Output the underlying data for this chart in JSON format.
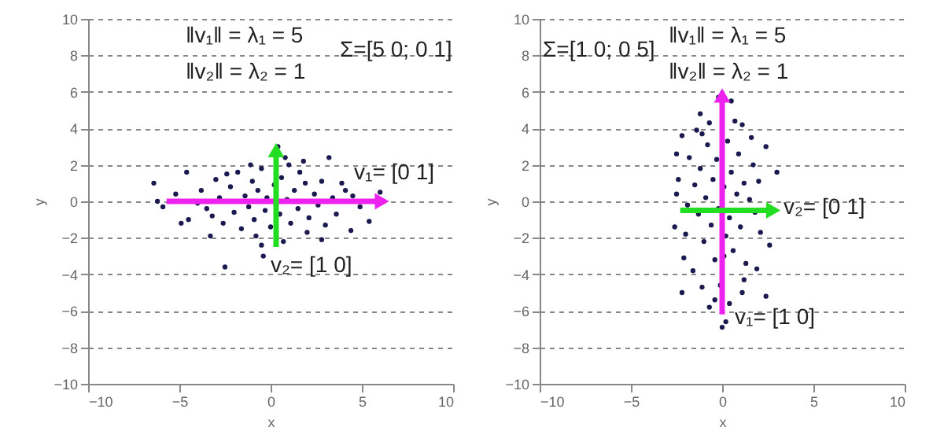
{
  "chart_data": [
    {
      "type": "scatter",
      "xlabel": "x",
      "ylabel": "y",
      "xlim": [
        -10,
        10
      ],
      "xticks": [
        -10,
        -5,
        0,
        5,
        10
      ],
      "ylim": [
        -10,
        10
      ],
      "yticks": [
        -10,
        -8,
        -6,
        -4,
        -2,
        0,
        2,
        4,
        6,
        8,
        10
      ],
      "grid": "y",
      "series": [
        {
          "marker": "circle",
          "color": "#1a1a50",
          "x": [
            -6.4,
            -6.2,
            -5.9,
            -4.6,
            -4.9,
            -4.5,
            -3.3,
            -2.5,
            -0.4,
            -0.5,
            0.4,
            0.8,
            1.8,
            3.2,
            4.5,
            4.9,
            5.4,
            6.0,
            4.4,
            2.8,
            0.7,
            3.9,
            2.8,
            1.6,
            -3.8,
            -3.5,
            -3.0,
            -2.8,
            -2.6,
            -2.2,
            -2.0,
            -1.8,
            -1.6,
            -1.4,
            -1.2,
            -1.0,
            -0.9,
            -0.7,
            -0.5,
            -0.3,
            -0.2,
            0.0,
            0.2,
            0.5,
            0.6,
            0.9,
            1.1,
            1.3,
            1.5,
            1.9,
            2.1,
            2.4,
            2.6,
            3.0,
            3.4,
            3.6,
            -4.0,
            -3.2,
            -1.1,
            1.0,
            -2.4,
            2.0,
            -0.8,
            0.3,
            4.1,
            -5.2
          ],
          "values": [
            1.0,
            0,
            -0.3,
            1.6,
            -1.2,
            -1.0,
            -1.9,
            -3.6,
            -3.0,
            -2.4,
            3.0,
            2.4,
            2.2,
            2.4,
            0.3,
            -0.3,
            -1.1,
            0.5,
            -1.6,
            -2.1,
            -2.2,
            1.0,
            1.1,
            1.6,
            0.6,
            -0.4,
            1.2,
            0.2,
            -1.2,
            0.8,
            -0.6,
            1.6,
            -1.5,
            0.3,
            -0.3,
            1.1,
            -1.0,
            0.6,
            1.8,
            -0.5,
            0.2,
            -1.4,
            0.9,
            -0.7,
            1.3,
            0.1,
            -1.2,
            0.6,
            -0.4,
            1.0,
            -0.9,
            0.4,
            -0.2,
            -1.3,
            0.2,
            -0.7,
            -0.1,
            -0.8,
            2.0,
            2.0,
            1.5,
            -1.7,
            -1.9,
            -0.2,
            0.6,
            0.4
          ]
        },
        {
          "type": "line",
          "marker": "triangle",
          "color": "#ee22ee",
          "x": [
            -5.7,
            6.1
          ],
          "values": [
            0,
            0
          ]
        },
        {
          "type": "line",
          "marker": "triangle",
          "color": "#22dd22",
          "x": [
            0.3,
            0.3
          ],
          "values": [
            -2.5,
            2.8
          ]
        }
      ],
      "annotations": [
        "‖v₁‖ = λ₁ = 5",
        "‖v₂‖ = λ₂ = 1",
        "Σ=[5 0; 0 1]",
        "v₁= [0 1]",
        "v₂= [1 0]"
      ]
    },
    {
      "type": "scatter",
      "xlabel": "x",
      "ylabel": "y",
      "xlim": [
        -10,
        10
      ],
      "xticks": [
        -10,
        -5,
        0,
        5,
        10
      ],
      "ylim": [
        -10,
        10
      ],
      "yticks": [
        -10,
        -8,
        -6,
        -4,
        -2,
        0,
        2,
        4,
        6,
        8,
        10
      ],
      "grid": "y",
      "series": [
        {
          "marker": "circle",
          "color": "#1a1a50",
          "x": [
            -0.2,
            0.5,
            -1.2,
            1.1,
            -2.2,
            1.6,
            2.4,
            -2.5,
            3.0,
            -2.5,
            -2.6,
            -2.1,
            -2.2,
            -1.1,
            1.9,
            2.4,
            1.1,
            0,
            0.2,
            -0.4,
            2.1,
            -1.1,
            -0.7,
            -1.8,
            -1.5,
            -1.3,
            -1.2,
            -1.0,
            -0.9,
            -0.8,
            -0.6,
            -0.5,
            -0.4,
            -0.3,
            -0.2,
            0.1,
            0.2,
            0.3,
            0.4,
            0.5,
            0.6,
            0.8,
            0.9,
            1.0,
            1.2,
            1.3,
            1.5,
            1.7,
            1.8,
            2.0,
            -2.0,
            -1.6,
            -1.4,
            0.7,
            -0.1,
            0.4,
            -2.4,
            1.2,
            2.6,
            -0.7,
            -1.9,
            0.0,
            0.1
          ],
          "values": [
            5.7,
            5.5,
            4.8,
            4.2,
            3.6,
            3.5,
            3.0,
            2.6,
            1.6,
            0.4,
            -1.4,
            -3.1,
            -5.0,
            -4.7,
            -3.7,
            -5.2,
            -5.0,
            -6.9,
            -6.6,
            -5.4,
            -1.7,
            3.7,
            4.3,
            2.4,
            0.9,
            -0.7,
            1.8,
            -2.2,
            0.2,
            3.1,
            -1.3,
            1.2,
            -3.2,
            2.3,
            -0.4,
            0.8,
            -1.9,
            3.3,
            -0.9,
            1.6,
            -2.7,
            0.4,
            2.6,
            -1.4,
            1.0,
            -3.4,
            0.1,
            2.0,
            -0.6,
            1.1,
            -1.8,
            -3.8,
            3.9,
            4.4,
            -4.6,
            -5.6,
            1.2,
            -4.3,
            -2.4,
            -5.8,
            -0.2,
            2.0,
            -3.0
          ]
        },
        {
          "type": "line",
          "marker": "triangle",
          "color": "#ee22ee",
          "x": [
            0,
            0
          ],
          "values": [
            -6.2,
            5.8
          ]
        },
        {
          "type": "line",
          "marker": "triangle",
          "color": "#22dd22",
          "x": [
            -2.3,
            2.8
          ],
          "values": [
            -0.5,
            -0.5
          ]
        }
      ],
      "annotations": [
        "‖v₁‖ = λ₁ = 5",
        "‖v₂‖ = λ₂ = 1",
        "Σ=[1 0; 0 5]",
        "v₂= [0 1]",
        "v₁= [1 0]"
      ]
    }
  ]
}
